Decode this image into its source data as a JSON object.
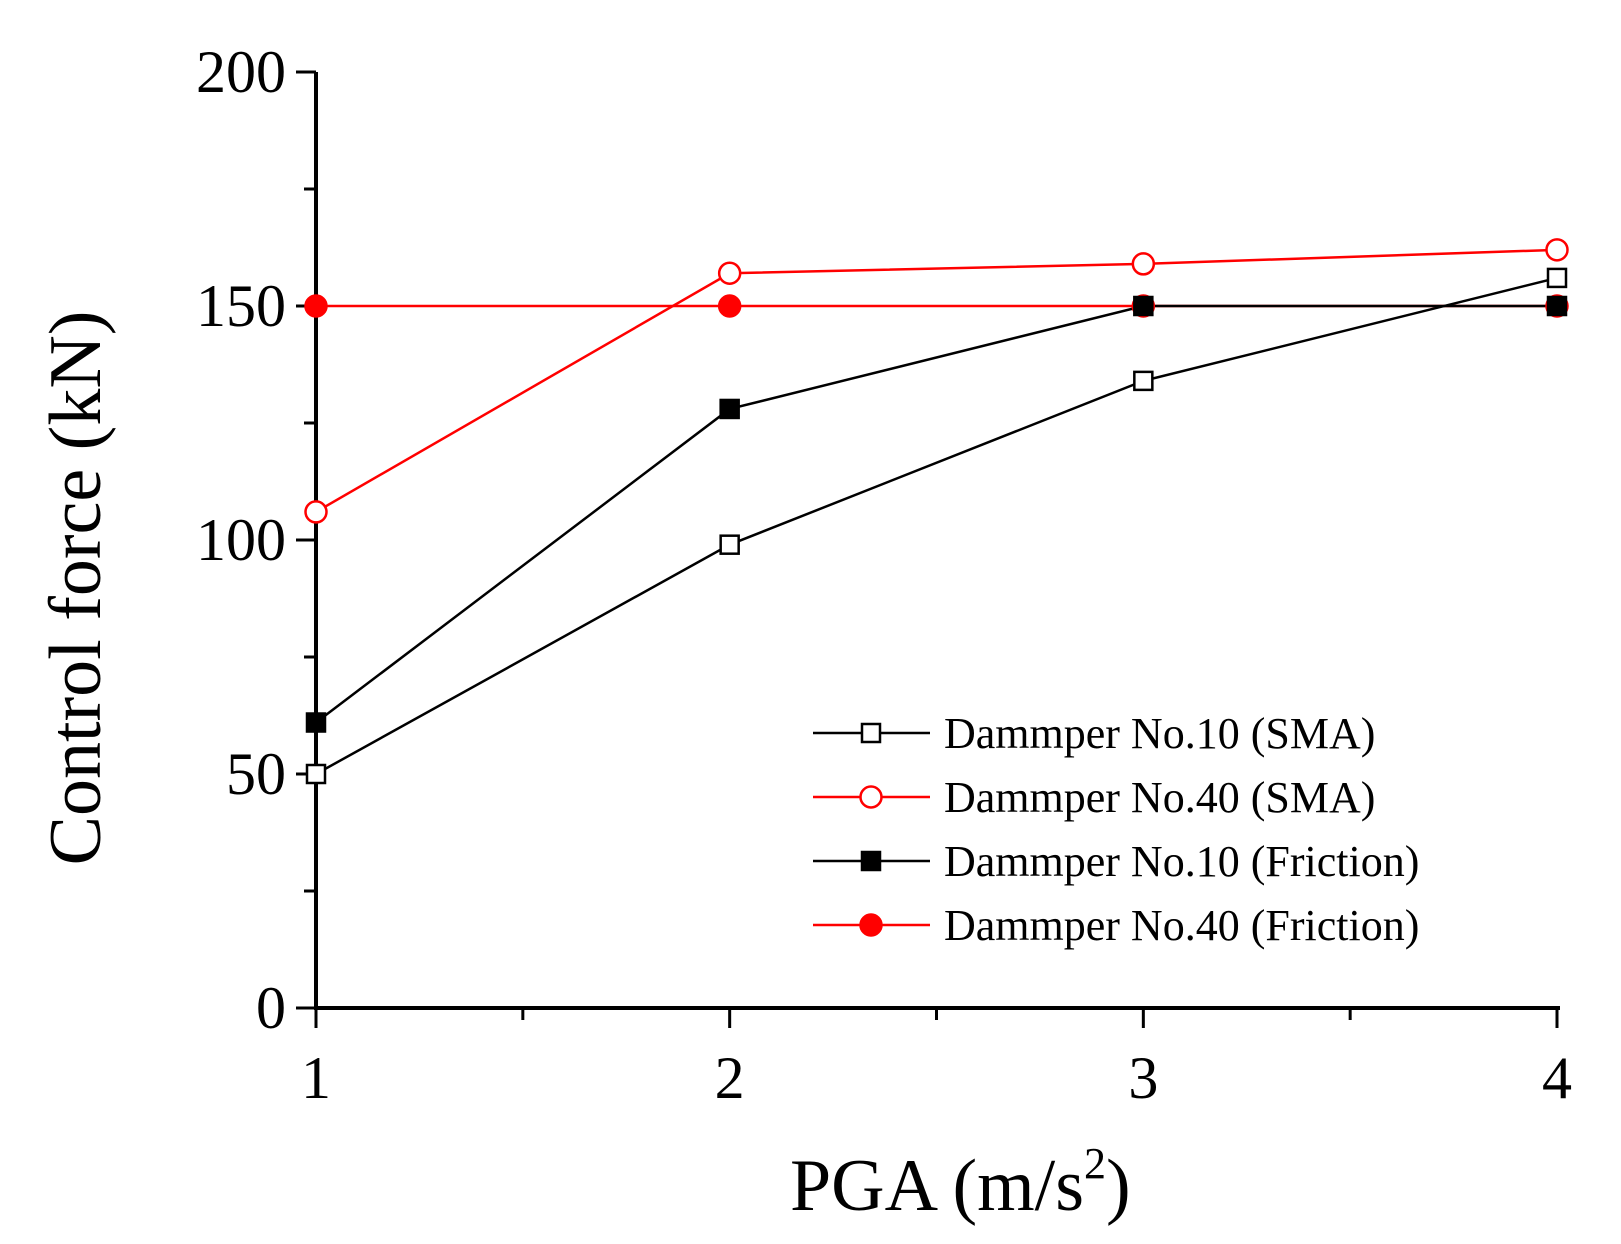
{
  "chart_data": {
    "type": "line",
    "title": "",
    "xlabel": "PGA (m/s",
    "xlabel_superscript": "2",
    "xlabel_close": ")",
    "ylabel": "Control force (kN)",
    "xlim": [
      1,
      4
    ],
    "ylim": [
      0,
      200
    ],
    "x_ticks": [
      1,
      2,
      3,
      4
    ],
    "x_tick_labels": [
      "1",
      "2",
      "3",
      "4"
    ],
    "y_ticks": [
      0,
      50,
      100,
      150,
      200
    ],
    "y_tick_labels": [
      "0",
      "50",
      "100",
      "150",
      "200"
    ],
    "grid": false,
    "legend_position": "bottom-right",
    "series": [
      {
        "name": "Dammper No.10 (SMA)",
        "x": [
          1,
          2,
          3,
          4
        ],
        "values": [
          50,
          99,
          134,
          156
        ],
        "color": "#000000",
        "marker": "square-open"
      },
      {
        "name": "Dammper No.40 (SMA)",
        "x": [
          1,
          2,
          3,
          4
        ],
        "values": [
          106,
          157,
          159,
          162
        ],
        "color": "#ff0000",
        "marker": "circle-open"
      },
      {
        "name": "Dammper No.10 (Friction)",
        "x": [
          1,
          2,
          3,
          4
        ],
        "values": [
          61,
          128,
          150,
          150
        ],
        "color": "#000000",
        "marker": "square-filled"
      },
      {
        "name": "Dammper No.40 (Friction)",
        "x": [
          1,
          2,
          3,
          4
        ],
        "values": [
          150,
          150,
          150,
          150
        ],
        "color": "#ff0000",
        "marker": "circle-filled"
      }
    ]
  }
}
